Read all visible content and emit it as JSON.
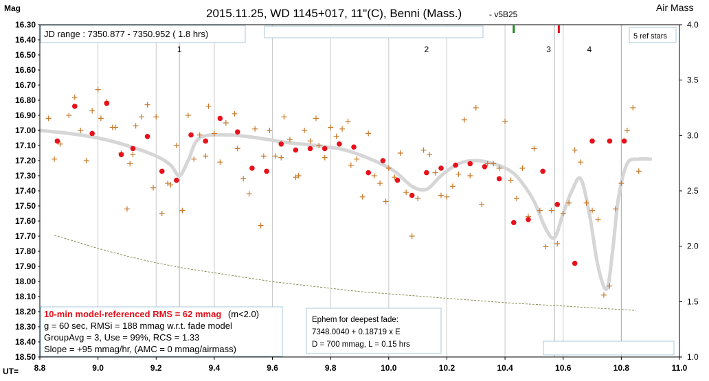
{
  "chart_data": {
    "type": "scatter",
    "title": "2015.11.25, WD 1145+017, 11\"(C), Benni (Mass.)",
    "subtitle": "- v5B25",
    "ylabel": "Mag",
    "y2label": "Air Mass",
    "xlabel": "UT=",
    "xlim": [
      8.8,
      11.0
    ],
    "ylim": [
      16.3,
      18.5
    ],
    "y_inverted": true,
    "y2lim": [
      1.0,
      4.0
    ],
    "x_ticks": [
      "8.8",
      "9.0",
      "9.2",
      "9.4",
      "9.6",
      "9.8",
      "10.0",
      "10.2",
      "10.4",
      "10.6",
      "10.8",
      "11.0"
    ],
    "y_ticks": [
      "16.30",
      "16.40",
      "16.50",
      "16.60",
      "16.70",
      "16.80",
      "16.90",
      "17.00",
      "17.10",
      "17.20",
      "17.30",
      "17.40",
      "17.50",
      "17.60",
      "17.70",
      "17.80",
      "17.90",
      "18.00",
      "18.10",
      "18.20",
      "18.30",
      "18.40",
      "18.50"
    ],
    "y2_ticks": [
      "4.0",
      "3.5",
      "3.0",
      "2.5",
      "2.0",
      "1.5",
      "1.0"
    ],
    "grid": "vertical",
    "jd_range_text": "JD range : 7350.877 - 7350.952 ( 1.8 hrs)",
    "ref_stars_text": "5 ref stars",
    "event_labels": [
      {
        "text": "1",
        "x": 9.28
      },
      {
        "text": "2",
        "x": 10.13
      },
      {
        "text": "3",
        "x": 10.55
      },
      {
        "text": "4",
        "x": 10.69
      }
    ],
    "event_lines_x": [
      9.28,
      10.57,
      10.8
    ],
    "markers": [
      {
        "x": 10.43,
        "color": "#1a8a1a"
      },
      {
        "x": 10.585,
        "color": "#e0101a"
      }
    ],
    "stats_box": {
      "line1_red": "10-min model-referenced RMS = 62 mmag",
      "line1_black": "(m<2.0)",
      "line2": "g = 60 sec, RMSi = 188 mmag w.r.t. fade model",
      "line3": "GroupAvg = 3, Use = 99%, RCS = 1.33",
      "line4": "Slope = +95 mmag/hr, (AMC = 0 mmag/airmass)"
    },
    "ephem_box": {
      "line1": "Ephem for deepest fade:",
      "line2": "7348.0040  + 0.18719  x  E",
      "line3": "D = 700 mmag,  L = 0.15 hrs"
    },
    "colors": {
      "individual": "#c87828",
      "group_avg": "#e8101a",
      "model": "#d6d6d6",
      "airmass": "#8a8a50",
      "grid": "#c8c8c8",
      "box_border": "#a8c8d8"
    },
    "series": [
      {
        "name": "individual",
        "marker": "plus",
        "x": [
          8.83,
          8.85,
          8.87,
          8.9,
          8.92,
          8.94,
          8.96,
          8.98,
          9.0,
          9.01,
          9.03,
          9.05,
          9.06,
          9.08,
          9.1,
          9.11,
          9.12,
          9.13,
          9.15,
          9.17,
          9.19,
          9.2,
          9.22,
          9.24,
          9.25,
          9.27,
          9.29,
          9.31,
          9.33,
          9.35,
          9.37,
          9.38,
          9.4,
          9.42,
          9.44,
          9.47,
          9.48,
          9.5,
          9.52,
          9.54,
          9.56,
          9.57,
          9.59,
          9.61,
          9.63,
          9.64,
          9.66,
          9.68,
          9.69,
          9.71,
          9.73,
          9.75,
          9.76,
          9.78,
          9.8,
          9.82,
          9.84,
          9.86,
          9.87,
          9.89,
          9.91,
          9.93,
          9.95,
          9.97,
          9.99,
          10.0,
          10.02,
          10.04,
          10.06,
          10.08,
          10.1,
          10.12,
          10.14,
          10.16,
          10.18,
          10.2,
          10.22,
          10.24,
          10.26,
          10.28,
          10.3,
          10.32,
          10.34,
          10.36,
          10.38,
          10.4,
          10.42,
          10.44,
          10.46,
          10.48,
          10.5,
          10.52,
          10.54,
          10.56,
          10.58,
          10.6,
          10.62,
          10.64,
          10.66,
          10.68,
          10.7,
          10.72,
          10.74,
          10.76,
          10.78,
          10.8,
          10.82,
          10.84,
          10.86
        ],
        "y": [
          16.92,
          17.19,
          17.09,
          16.9,
          16.78,
          17.0,
          17.2,
          16.87,
          16.73,
          16.92,
          16.81,
          16.98,
          16.98,
          17.15,
          17.52,
          17.22,
          17.16,
          16.97,
          16.91,
          16.83,
          17.38,
          16.91,
          17.55,
          17.35,
          17.36,
          17.1,
          17.53,
          16.9,
          17.19,
          17.03,
          17.17,
          16.84,
          17.02,
          17.21,
          16.95,
          16.89,
          17.12,
          17.32,
          17.42,
          16.99,
          17.63,
          17.17,
          17.0,
          17.17,
          17.18,
          16.91,
          17.06,
          17.31,
          17.3,
          17.0,
          17.07,
          16.92,
          17.1,
          17.18,
          16.98,
          17.04,
          16.99,
          16.94,
          17.23,
          17.19,
          17.44,
          17.02,
          17.3,
          17.35,
          17.47,
          17.25,
          17.31,
          17.15,
          17.41,
          17.7,
          17.45,
          17.13,
          17.16,
          17.28,
          17.43,
          17.44,
          17.37,
          17.29,
          16.93,
          17.3,
          16.85,
          17.49,
          17.22,
          17.22,
          17.25,
          16.94,
          17.33,
          17.45,
          17.25,
          17.57,
          17.12,
          17.53,
          17.77,
          17.53,
          17.75,
          17.55,
          17.48,
          17.13,
          17.21,
          17.48,
          17.53,
          17.59,
          18.09,
          18.03,
          17.52,
          17.35,
          17.0,
          16.85,
          17.27
        ]
      },
      {
        "name": "group_avg",
        "marker": "dot",
        "x": [
          8.86,
          8.92,
          8.98,
          9.03,
          9.08,
          9.12,
          9.17,
          9.22,
          9.27,
          9.32,
          9.37,
          9.42,
          9.48,
          9.53,
          9.58,
          9.63,
          9.68,
          9.73,
          9.78,
          9.83,
          9.88,
          9.93,
          9.98,
          10.03,
          10.08,
          10.13,
          10.18,
          10.23,
          10.28,
          10.33,
          10.38,
          10.43,
          10.48,
          10.53,
          10.58,
          10.64,
          10.7,
          10.76,
          10.81
        ],
        "y": [
          17.07,
          16.84,
          17.02,
          16.82,
          17.16,
          17.12,
          17.04,
          17.27,
          17.33,
          17.03,
          17.07,
          16.92,
          17.01,
          17.25,
          17.27,
          17.09,
          17.13,
          17.12,
          17.12,
          17.09,
          17.11,
          17.28,
          17.2,
          17.33,
          17.43,
          17.28,
          17.25,
          17.23,
          17.22,
          17.24,
          17.32,
          17.61,
          17.59,
          17.27,
          17.49,
          17.88,
          17.07,
          17.07,
          17.07
        ]
      },
      {
        "name": "model",
        "marker": "line",
        "x": [
          8.8,
          8.9,
          9.0,
          9.1,
          9.2,
          9.25,
          9.28,
          9.31,
          9.35,
          9.45,
          9.55,
          9.65,
          9.75,
          9.85,
          9.95,
          10.02,
          10.08,
          10.13,
          10.18,
          10.24,
          10.3,
          10.36,
          10.42,
          10.46,
          10.5,
          10.54,
          10.57,
          10.6,
          10.63,
          10.66,
          10.69,
          10.72,
          10.75,
          10.77,
          10.79,
          10.82,
          10.86,
          10.9
        ],
        "y": [
          17.0,
          17.02,
          17.05,
          17.1,
          17.17,
          17.23,
          17.3,
          17.2,
          17.05,
          17.03,
          17.05,
          17.08,
          17.1,
          17.13,
          17.2,
          17.27,
          17.37,
          17.39,
          17.3,
          17.22,
          17.2,
          17.22,
          17.27,
          17.35,
          17.47,
          17.65,
          17.71,
          17.55,
          17.4,
          17.32,
          17.55,
          17.9,
          18.05,
          17.8,
          17.45,
          17.22,
          17.19,
          17.19
        ]
      },
      {
        "name": "airmass",
        "marker": "dashed",
        "x": [
          8.85,
          9.0,
          9.1,
          9.2,
          9.3,
          9.4,
          9.5,
          9.6,
          9.7,
          9.8,
          9.9,
          10.0,
          10.2,
          10.4,
          10.6,
          10.85
        ],
        "y": [
          2.1,
          1.98,
          1.91,
          1.85,
          1.8,
          1.76,
          1.72,
          1.68,
          1.65,
          1.62,
          1.59,
          1.57,
          1.53,
          1.49,
          1.46,
          1.42
        ]
      }
    ]
  }
}
